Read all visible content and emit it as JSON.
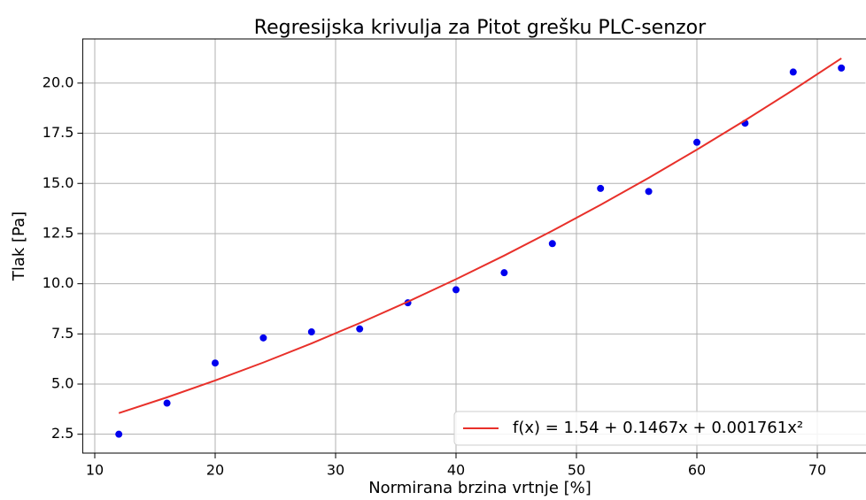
{
  "chart_data": {
    "type": "scatter",
    "title": "Regresijska krivulja za Pitot grešku PLC-senzor",
    "x_label": "Normirana brzina vrtnje [%]",
    "y_label": "Tlak [Pa]",
    "xlim": [
      9,
      74
    ],
    "ylim": [
      1.56,
      22.2
    ],
    "xticks": [
      10,
      20,
      30,
      40,
      50,
      60,
      70
    ],
    "yticks": [
      2.5,
      {
        "value": 5,
        "label": "5.0"
      },
      7.5,
      {
        "value": 10,
        "label": "10.0"
      },
      12.5,
      {
        "value": 15,
        "label": "15.0"
      },
      17.5,
      {
        "value": 20,
        "label": "20.0"
      }
    ],
    "grid": true,
    "legend": "lower right",
    "series": [
      {
        "type": "scatter",
        "color": "#0000ee",
        "x": [
          12,
          16,
          20,
          24,
          28,
          32,
          36,
          40,
          44,
          48,
          52,
          56,
          60,
          64,
          68,
          72
        ],
        "values": [
          2.5,
          4.05,
          6.05,
          7.3,
          7.6,
          7.75,
          9.05,
          9.7,
          10.55,
          12.0,
          14.75,
          14.6,
          17.05,
          18.0,
          20.55,
          20.75
        ]
      },
      {
        "type": "line",
        "name": "f(x) = 1.54 + 0.1467x + 0.001761x²",
        "color": "#e8302a",
        "x": [
          12,
          16,
          20,
          24,
          28,
          32,
          36,
          40,
          44,
          48,
          52,
          56,
          60,
          64,
          68,
          72
        ],
        "values": [
          3.554,
          4.338,
          5.178,
          6.075,
          7.028,
          8.038,
          9.103,
          10.226,
          11.404,
          12.639,
          13.93,
          15.278,
          16.682,
          18.142,
          19.659,
          21.231
        ]
      }
    ]
  }
}
